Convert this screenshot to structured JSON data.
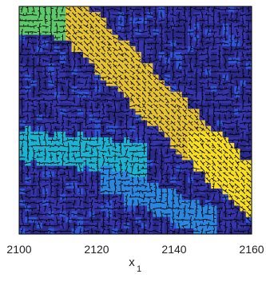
{
  "chart_data": {
    "type": "heatmap",
    "title": "",
    "xlabel": "x",
    "xlabel_subscript": "1",
    "ylabel": "",
    "xlim": [
      2100,
      2160
    ],
    "xticks": [
      2100,
      2120,
      2140,
      2160
    ],
    "xtick_labels": [
      "2100",
      "2120",
      "2140",
      "2160"
    ],
    "grid": false,
    "colormap": [
      "#2b2a8a",
      "#3534a8",
      "#2f54d4",
      "#2a87e0",
      "#1cb3d2",
      "#5ec96a",
      "#b7c13a",
      "#e6c330",
      "#f7de1e"
    ],
    "overlay": "black tree/branch graph drawn on a cell grid",
    "regions": [
      {
        "name": "green corner",
        "level": 5
      },
      {
        "name": "yellow diagonal band",
        "level": 7
      },
      {
        "name": "cyan patch",
        "level": 4
      },
      {
        "name": "blue lower band",
        "level": 3
      },
      {
        "name": "background",
        "level": 1
      }
    ]
  }
}
